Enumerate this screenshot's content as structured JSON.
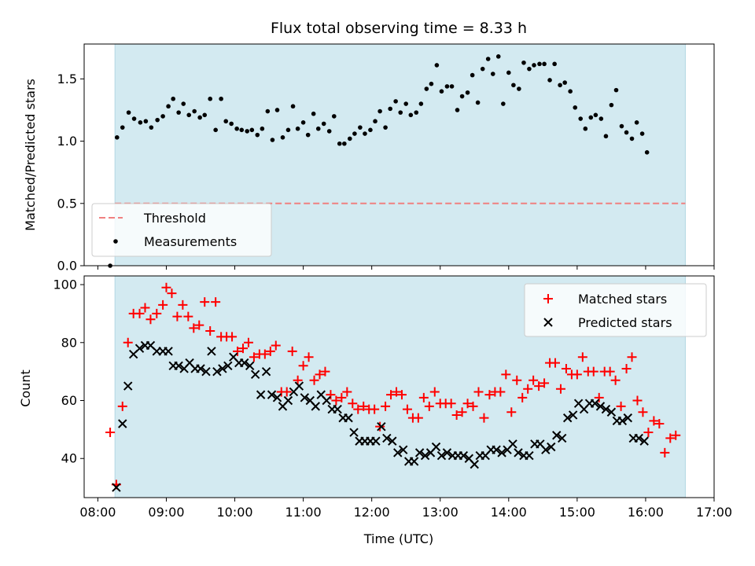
{
  "chart_data": {
    "title": "Flux total observing time = 8.33 h",
    "xlabel": "Time (UTC)",
    "x_ticks": [
      "08:00",
      "09:00",
      "10:00",
      "11:00",
      "12:00",
      "13:00",
      "14:00",
      "15:00",
      "16:00",
      "17:00"
    ],
    "xlim_hours": [
      7.8,
      17.0
    ],
    "observing_window_hours": [
      8.25,
      16.58
    ],
    "colors": {
      "window": "#d3eaf1",
      "window_edge": "#b3d7e3",
      "threshold": "#f08080",
      "matched": "#ff0000",
      "predicted": "#000000",
      "measurements": "#000000"
    },
    "top": {
      "type": "scatter",
      "ylabel": "Matched/Predicted stars",
      "ylim": [
        0,
        1.78
      ],
      "yticks": [
        "0.0",
        "0.5",
        "1.0",
        "1.5"
      ],
      "threshold": 0.5,
      "legend_position": "lower-left",
      "legend": {
        "threshold": "Threshold",
        "measurements": "Measurements"
      },
      "measurements": [
        [
          8.18,
          0.0
        ],
        [
          8.28,
          1.03
        ],
        [
          8.36,
          1.11
        ],
        [
          8.45,
          1.23
        ],
        [
          8.53,
          1.18
        ],
        [
          8.62,
          1.15
        ],
        [
          8.7,
          1.16
        ],
        [
          8.78,
          1.11
        ],
        [
          8.87,
          1.17
        ],
        [
          8.95,
          1.2
        ],
        [
          9.03,
          1.28
        ],
        [
          9.1,
          1.34
        ],
        [
          9.18,
          1.23
        ],
        [
          9.25,
          1.3
        ],
        [
          9.33,
          1.21
        ],
        [
          9.41,
          1.24
        ],
        [
          9.49,
          1.19
        ],
        [
          9.56,
          1.21
        ],
        [
          9.64,
          1.34
        ],
        [
          9.72,
          1.09
        ],
        [
          9.8,
          1.34
        ],
        [
          9.87,
          1.16
        ],
        [
          9.95,
          1.14
        ],
        [
          10.03,
          1.1
        ],
        [
          10.1,
          1.09
        ],
        [
          10.18,
          1.08
        ],
        [
          10.25,
          1.09
        ],
        [
          10.33,
          1.05
        ],
        [
          10.4,
          1.1
        ],
        [
          10.48,
          1.24
        ],
        [
          10.55,
          1.01
        ],
        [
          10.62,
          1.25
        ],
        [
          10.7,
          1.03
        ],
        [
          10.78,
          1.09
        ],
        [
          10.85,
          1.28
        ],
        [
          10.92,
          1.1
        ],
        [
          11.0,
          1.15
        ],
        [
          11.07,
          1.05
        ],
        [
          11.15,
          1.22
        ],
        [
          11.22,
          1.1
        ],
        [
          11.3,
          1.14
        ],
        [
          11.38,
          1.08
        ],
        [
          11.45,
          1.2
        ],
        [
          11.53,
          0.98
        ],
        [
          11.6,
          0.98
        ],
        [
          11.68,
          1.02
        ],
        [
          11.75,
          1.06
        ],
        [
          11.83,
          1.11
        ],
        [
          11.9,
          1.06
        ],
        [
          11.98,
          1.09
        ],
        [
          12.05,
          1.16
        ],
        [
          12.12,
          1.24
        ],
        [
          12.2,
          1.11
        ],
        [
          12.27,
          1.26
        ],
        [
          12.35,
          1.32
        ],
        [
          12.42,
          1.23
        ],
        [
          12.5,
          1.3
        ],
        [
          12.57,
          1.21
        ],
        [
          12.65,
          1.23
        ],
        [
          12.72,
          1.3
        ],
        [
          12.8,
          1.42
        ],
        [
          12.87,
          1.46
        ],
        [
          12.95,
          1.61
        ],
        [
          13.02,
          1.4
        ],
        [
          13.1,
          1.44
        ],
        [
          13.17,
          1.44
        ],
        [
          13.25,
          1.25
        ],
        [
          13.32,
          1.36
        ],
        [
          13.4,
          1.39
        ],
        [
          13.47,
          1.53
        ],
        [
          13.55,
          1.31
        ],
        [
          13.62,
          1.58
        ],
        [
          13.7,
          1.66
        ],
        [
          13.77,
          1.54
        ],
        [
          13.85,
          1.68
        ],
        [
          13.92,
          1.3
        ],
        [
          14.0,
          1.55
        ],
        [
          14.07,
          1.45
        ],
        [
          14.15,
          1.42
        ],
        [
          14.22,
          1.63
        ],
        [
          14.3,
          1.58
        ],
        [
          14.37,
          1.61
        ],
        [
          14.45,
          1.62
        ],
        [
          14.52,
          1.62
        ],
        [
          14.6,
          1.49
        ],
        [
          14.67,
          1.62
        ],
        [
          14.75,
          1.45
        ],
        [
          14.82,
          1.47
        ],
        [
          14.9,
          1.4
        ],
        [
          14.97,
          1.27
        ],
        [
          15.05,
          1.18
        ],
        [
          15.12,
          1.1
        ],
        [
          15.2,
          1.19
        ],
        [
          15.27,
          1.21
        ],
        [
          15.35,
          1.18
        ],
        [
          15.42,
          1.04
        ],
        [
          15.5,
          1.29
        ],
        [
          15.57,
          1.41
        ],
        [
          15.65,
          1.12
        ],
        [
          15.72,
          1.07
        ],
        [
          15.8,
          1.02
        ],
        [
          15.87,
          1.15
        ],
        [
          15.95,
          1.06
        ],
        [
          16.02,
          0.91
        ]
      ]
    },
    "bottom": {
      "type": "scatter",
      "ylabel": "Count",
      "ylim": [
        26.5,
        103
      ],
      "yticks": [
        "40",
        "60",
        "80",
        "100"
      ],
      "legend_position": "upper-right",
      "legend": {
        "matched": "Matched stars",
        "predicted": "Predicted stars"
      },
      "matched": [
        [
          8.18,
          49
        ],
        [
          8.27,
          31
        ],
        [
          8.36,
          58
        ],
        [
          8.44,
          80
        ],
        [
          8.52,
          90
        ],
        [
          8.61,
          90
        ],
        [
          8.69,
          92
        ],
        [
          8.77,
          88
        ],
        [
          8.86,
          90
        ],
        [
          8.95,
          93
        ],
        [
          9.0,
          99
        ],
        [
          9.08,
          97
        ],
        [
          9.16,
          89
        ],
        [
          9.24,
          93
        ],
        [
          9.32,
          89
        ],
        [
          9.4,
          85
        ],
        [
          9.48,
          86
        ],
        [
          9.56,
          94
        ],
        [
          9.64,
          84
        ],
        [
          9.72,
          94
        ],
        [
          9.8,
          82
        ],
        [
          9.88,
          82
        ],
        [
          9.96,
          82
        ],
        [
          10.04,
          77
        ],
        [
          10.12,
          78
        ],
        [
          10.2,
          80
        ],
        [
          10.28,
          75
        ],
        [
          10.36,
          76
        ],
        [
          10.44,
          76
        ],
        [
          10.52,
          77
        ],
        [
          10.6,
          79
        ],
        [
          10.68,
          63
        ],
        [
          10.76,
          63
        ],
        [
          10.84,
          77
        ],
        [
          10.92,
          67
        ],
        [
          11.0,
          72
        ],
        [
          11.08,
          75
        ],
        [
          11.16,
          67
        ],
        [
          11.24,
          69
        ],
        [
          11.32,
          70
        ],
        [
          11.4,
          62
        ],
        [
          11.48,
          60
        ],
        [
          11.56,
          61
        ],
        [
          11.64,
          63
        ],
        [
          11.72,
          59
        ],
        [
          11.8,
          57
        ],
        [
          11.88,
          58
        ],
        [
          11.96,
          57
        ],
        [
          12.04,
          57
        ],
        [
          12.12,
          51
        ],
        [
          12.2,
          58
        ],
        [
          12.28,
          62
        ],
        [
          12.36,
          63
        ],
        [
          12.44,
          62
        ],
        [
          12.52,
          57
        ],
        [
          12.6,
          54
        ],
        [
          12.68,
          54
        ],
        [
          12.76,
          61
        ],
        [
          12.84,
          58
        ],
        [
          12.92,
          63
        ],
        [
          13.0,
          59
        ],
        [
          13.08,
          59
        ],
        [
          13.16,
          59
        ],
        [
          13.24,
          55
        ],
        [
          13.32,
          56
        ],
        [
          13.4,
          59
        ],
        [
          13.48,
          58
        ],
        [
          13.56,
          63
        ],
        [
          13.64,
          54
        ],
        [
          13.72,
          62
        ],
        [
          13.8,
          63
        ],
        [
          13.88,
          63
        ],
        [
          13.96,
          69
        ],
        [
          14.04,
          56
        ],
        [
          14.12,
          67
        ],
        [
          14.2,
          61
        ],
        [
          14.28,
          64
        ],
        [
          14.36,
          67
        ],
        [
          14.44,
          65
        ],
        [
          14.52,
          66
        ],
        [
          14.6,
          73
        ],
        [
          14.68,
          73
        ],
        [
          14.76,
          64
        ],
        [
          14.84,
          71
        ],
        [
          14.92,
          69
        ],
        [
          15.0,
          69
        ],
        [
          15.08,
          75
        ],
        [
          15.16,
          70
        ],
        [
          15.24,
          70
        ],
        [
          15.32,
          61
        ],
        [
          15.4,
          70
        ],
        [
          15.48,
          70
        ],
        [
          15.56,
          67
        ],
        [
          15.64,
          58
        ],
        [
          15.72,
          71
        ],
        [
          15.8,
          75
        ],
        [
          15.88,
          60
        ],
        [
          15.96,
          56
        ],
        [
          16.04,
          49
        ],
        [
          16.12,
          53
        ],
        [
          16.2,
          52
        ],
        [
          16.28,
          42
        ],
        [
          16.36,
          47
        ],
        [
          16.44,
          48
        ]
      ],
      "predicted": [
        [
          8.27,
          30
        ],
        [
          8.36,
          52
        ],
        [
          8.44,
          65
        ],
        [
          8.52,
          76
        ],
        [
          8.61,
          78
        ],
        [
          8.69,
          79
        ],
        [
          8.77,
          79
        ],
        [
          8.86,
          77
        ],
        [
          8.95,
          77
        ],
        [
          9.03,
          77
        ],
        [
          9.1,
          72
        ],
        [
          9.18,
          72
        ],
        [
          9.26,
          71
        ],
        [
          9.34,
          73
        ],
        [
          9.42,
          71
        ],
        [
          9.5,
          71
        ],
        [
          9.58,
          70
        ],
        [
          9.66,
          77
        ],
        [
          9.74,
          70
        ],
        [
          9.82,
          71
        ],
        [
          9.9,
          72
        ],
        [
          9.98,
          75
        ],
        [
          10.06,
          73
        ],
        [
          10.14,
          73
        ],
        [
          10.22,
          72
        ],
        [
          10.3,
          69
        ],
        [
          10.38,
          62
        ],
        [
          10.46,
          70
        ],
        [
          10.54,
          62
        ],
        [
          10.62,
          61
        ],
        [
          10.7,
          58
        ],
        [
          10.78,
          60
        ],
        [
          10.86,
          63
        ],
        [
          10.94,
          65
        ],
        [
          11.02,
          61
        ],
        [
          11.1,
          60
        ],
        [
          11.18,
          58
        ],
        [
          11.26,
          62
        ],
        [
          11.34,
          60
        ],
        [
          11.42,
          57
        ],
        [
          11.5,
          57
        ],
        [
          11.58,
          54
        ],
        [
          11.66,
          54
        ],
        [
          11.74,
          49
        ],
        [
          11.82,
          46
        ],
        [
          11.9,
          46
        ],
        [
          11.98,
          46
        ],
        [
          12.06,
          46
        ],
        [
          12.14,
          51
        ],
        [
          12.22,
          47
        ],
        [
          12.3,
          46
        ],
        [
          12.38,
          42
        ],
        [
          12.46,
          43
        ],
        [
          12.54,
          39
        ],
        [
          12.62,
          39
        ],
        [
          12.7,
          42
        ],
        [
          12.78,
          41
        ],
        [
          12.86,
          42
        ],
        [
          12.94,
          44
        ],
        [
          13.02,
          41
        ],
        [
          13.1,
          42
        ],
        [
          13.18,
          41
        ],
        [
          13.26,
          41
        ],
        [
          13.34,
          41
        ],
        [
          13.42,
          40
        ],
        [
          13.5,
          38
        ],
        [
          13.58,
          41
        ],
        [
          13.66,
          41
        ],
        [
          13.74,
          43
        ],
        [
          13.82,
          43
        ],
        [
          13.9,
          42
        ],
        [
          13.98,
          43
        ],
        [
          14.06,
          45
        ],
        [
          14.14,
          42
        ],
        [
          14.22,
          41
        ],
        [
          14.3,
          41
        ],
        [
          14.38,
          45
        ],
        [
          14.46,
          45
        ],
        [
          14.54,
          43
        ],
        [
          14.62,
          44
        ],
        [
          14.7,
          48
        ],
        [
          14.78,
          47
        ],
        [
          14.86,
          54
        ],
        [
          14.94,
          55
        ],
        [
          15.02,
          59
        ],
        [
          15.1,
          57
        ],
        [
          15.18,
          59
        ],
        [
          15.26,
          59
        ],
        [
          15.34,
          58
        ],
        [
          15.42,
          57
        ],
        [
          15.5,
          56
        ],
        [
          15.58,
          53
        ],
        [
          15.66,
          53
        ],
        [
          15.74,
          54
        ],
        [
          15.82,
          47
        ],
        [
          15.9,
          47
        ],
        [
          15.98,
          46
        ]
      ]
    }
  }
}
